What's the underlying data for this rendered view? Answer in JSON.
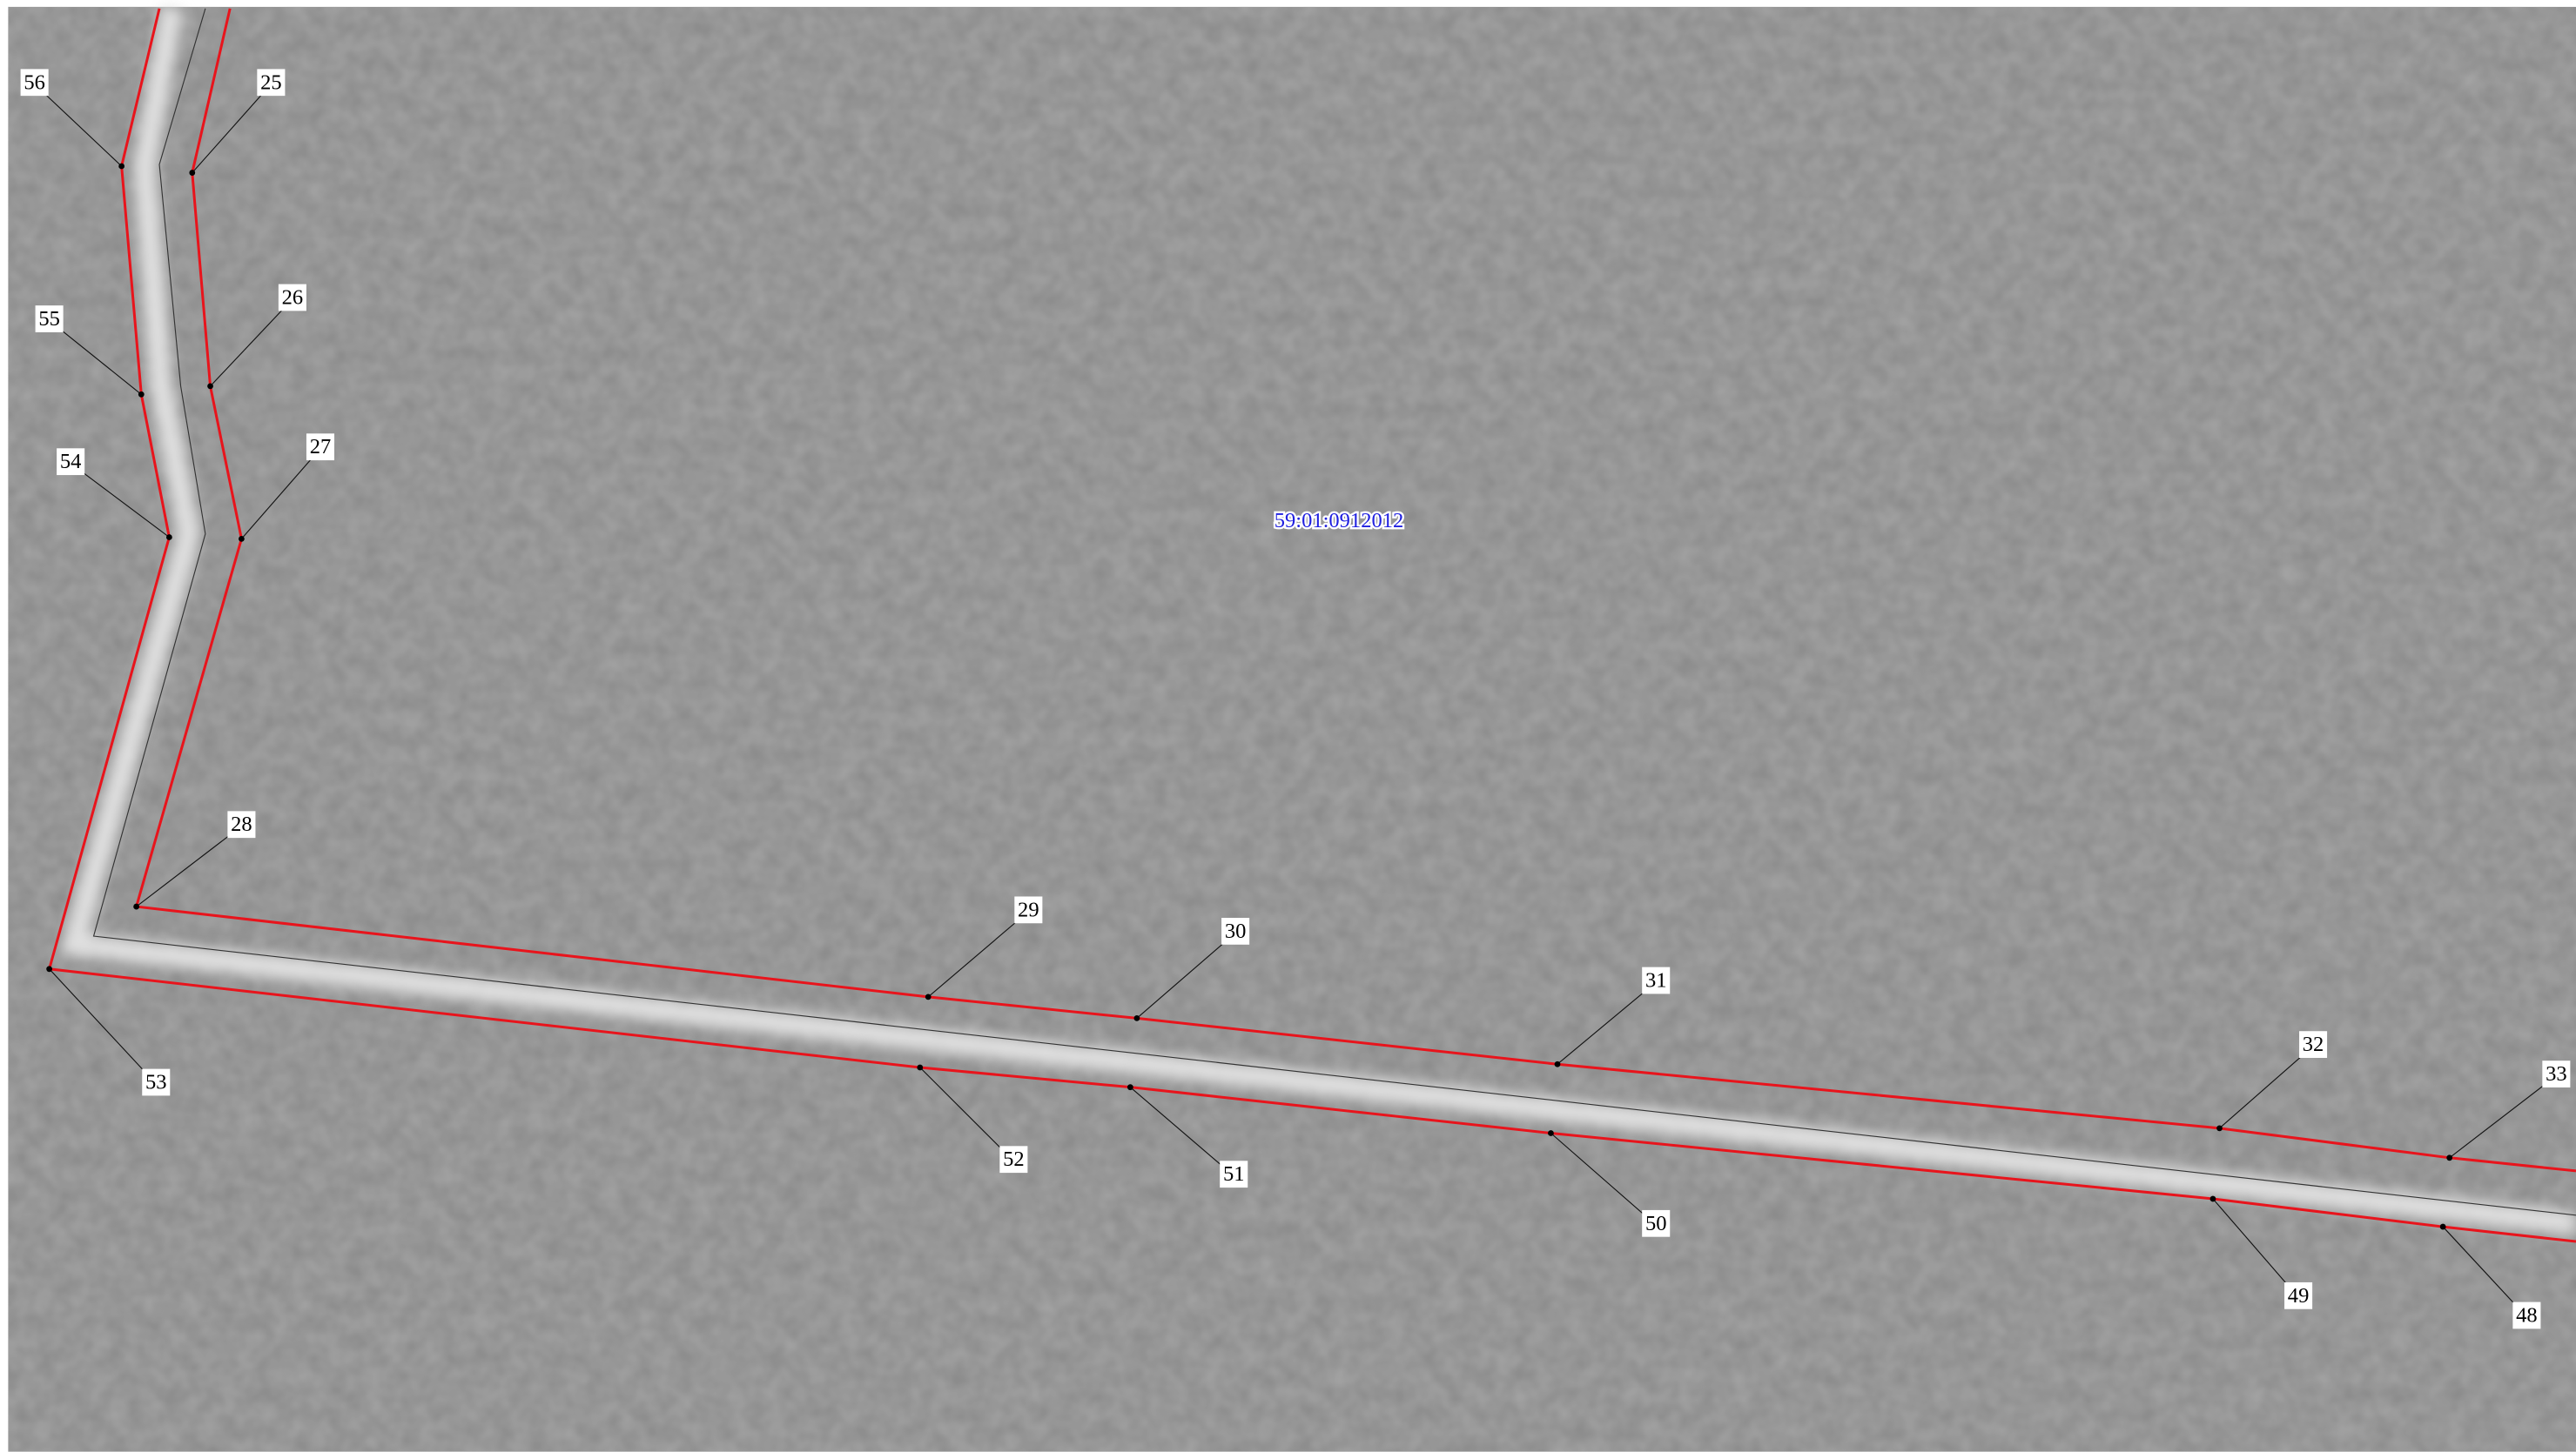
{
  "map": {
    "parcel_label": "59:01:0912012",
    "inner_points": [
      "25",
      "26",
      "27",
      "28",
      "29",
      "30",
      "31",
      "32",
      "33"
    ],
    "outer_points": [
      "56",
      "55",
      "54",
      "53",
      "52",
      "51",
      "50",
      "49",
      "48"
    ]
  }
}
